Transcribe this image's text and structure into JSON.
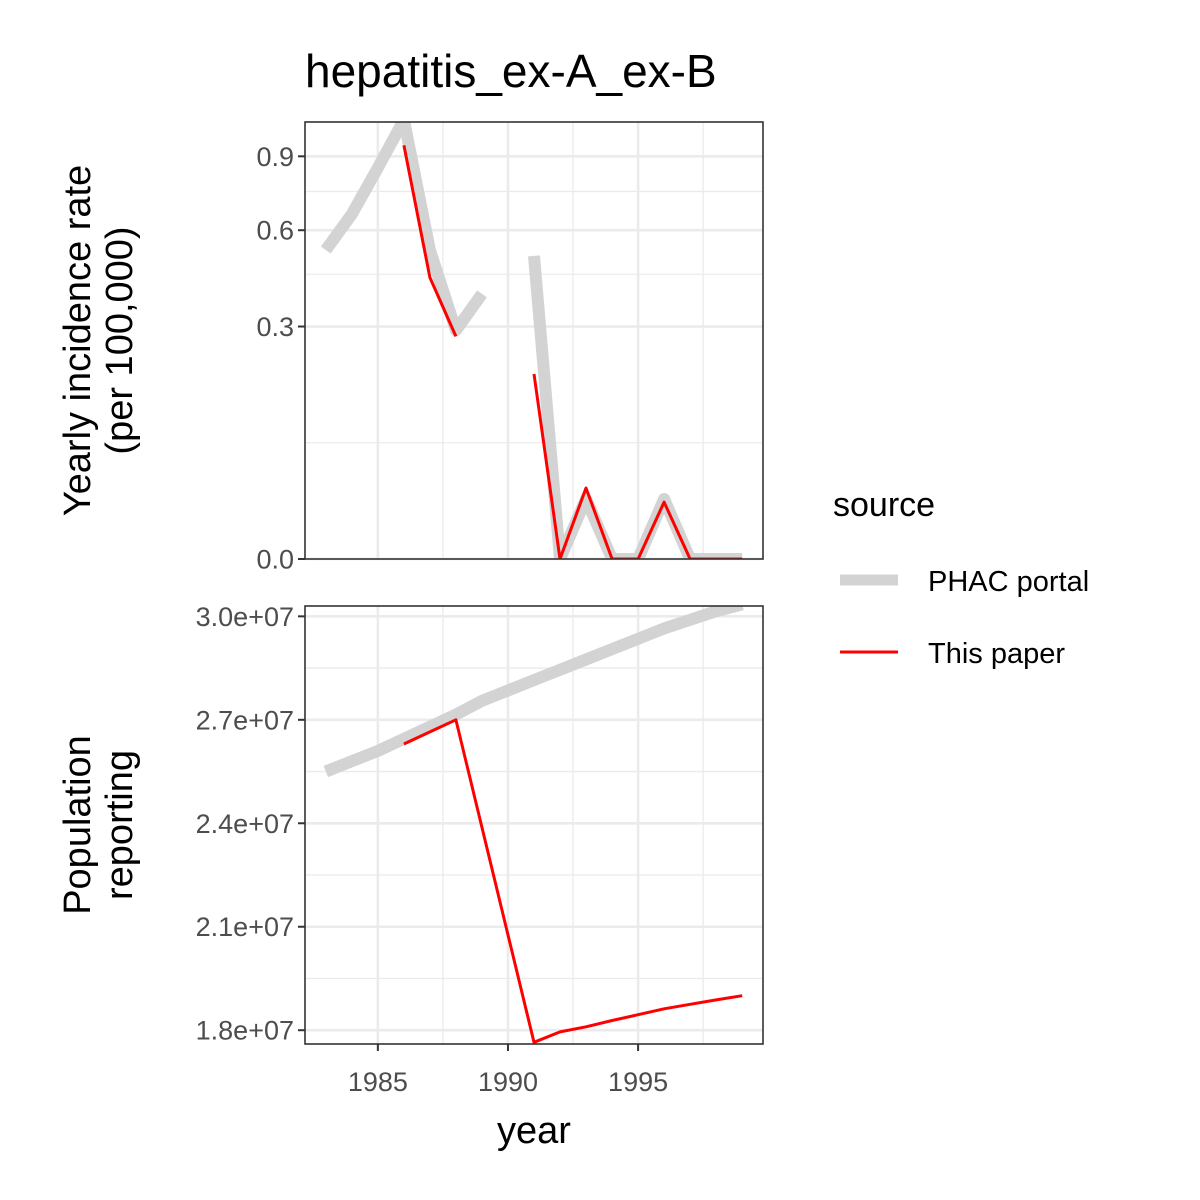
{
  "chart_data": {
    "type": "line",
    "title": "hepatitis_ex-A_ex-B",
    "xlabel": "year",
    "xlim": [
      1982.2,
      1999.8
    ],
    "x_ticks": [
      1985,
      1990,
      1995
    ],
    "x_tick_labels": [
      "1985",
      "1990",
      "1995"
    ],
    "x_minor_ticks": [
      1987.5,
      1992.5,
      1997.5
    ],
    "grid": true,
    "legend": {
      "title": "source",
      "position": "right",
      "entries": [
        {
          "label": "PHAC portal",
          "color": "#d3d3d3",
          "style": "thick"
        },
        {
          "label": "This paper",
          "color": "#ff0000",
          "style": "thin"
        }
      ]
    },
    "panels": [
      {
        "ylabel": [
          "Yearly incidence rate",
          "(per 100,000)"
        ],
        "y_scale": "sqrt",
        "ylim": [
          0,
          1.06
        ],
        "y_ticks": [
          0.0,
          0.3,
          0.6,
          0.9
        ],
        "y_tick_labels": [
          "0.0",
          "0.3",
          "0.6",
          "0.9"
        ],
        "y_minor_ticks": [
          0.075,
          0.45,
          0.75
        ],
        "series": [
          {
            "name": "PHAC portal",
            "segments": [
              {
                "x": [
                  1983,
                  1984,
                  1985,
                  1986,
                  1987,
                  1988,
                  1989
                ],
                "y": [
                  0.53,
                  0.66,
                  0.85,
                  1.07,
                  0.53,
                  0.29,
                  0.39
                ]
              },
              {
                "x": [
                  1991,
                  1992,
                  1993,
                  1994,
                  1995,
                  1996,
                  1997,
                  1998,
                  1999
                ],
                "y": [
                  0.51,
                  0.0,
                  0.02,
                  0.0,
                  0.0,
                  0.02,
                  0.0,
                  0.0,
                  0.0
                ]
              }
            ]
          },
          {
            "name": "This paper",
            "segments": [
              {
                "x": [
                  1986,
                  1987,
                  1988
                ],
                "y": [
                  0.95,
                  0.44,
                  0.275
                ]
              },
              {
                "x": [
                  1991,
                  1992,
                  1993,
                  1994,
                  1995,
                  1996,
                  1997,
                  1998,
                  1999
                ],
                "y": [
                  0.19,
                  0.0,
                  0.028,
                  0.0,
                  0.0,
                  0.018,
                  0.0,
                  0.0,
                  0.0
                ]
              }
            ]
          }
        ]
      },
      {
        "ylabel": [
          "Population",
          "reporting"
        ],
        "y_scale": "linear",
        "ylim": [
          17600000,
          30300000
        ],
        "y_ticks": [
          18000000,
          21000000,
          24000000,
          27000000,
          30000000
        ],
        "y_tick_labels": [
          "1.8e+07",
          "2.1e+07",
          "2.4e+07",
          "2.7e+07",
          "3.0e+07"
        ],
        "y_minor_ticks": [
          19500000,
          22500000,
          25500000,
          28500000
        ],
        "series": [
          {
            "name": "PHAC portal",
            "segments": [
              {
                "x": [
                  1983,
                  1984,
                  1985,
                  1986,
                  1987,
                  1988,
                  1989,
                  1990,
                  1991,
                  1992,
                  1993,
                  1994,
                  1995,
                  1996,
                  1997,
                  1998,
                  1999
                ],
                "y": [
                  25500000,
                  25800000,
                  26100000,
                  26450000,
                  26800000,
                  27150000,
                  27550000,
                  27850000,
                  28150000,
                  28450000,
                  28750000,
                  29050000,
                  29350000,
                  29650000,
                  29900000,
                  30150000,
                  30350000
                ]
              }
            ]
          },
          {
            "name": "This paper",
            "segments": [
              {
                "x": [
                  1986,
                  1987,
                  1988,
                  1991,
                  1992,
                  1993,
                  1994,
                  1995,
                  1996,
                  1997,
                  1998,
                  1999
                ],
                "y": [
                  26300000,
                  26650000,
                  27000000,
                  17650000,
                  17950000,
                  18100000,
                  18280000,
                  18450000,
                  18620000,
                  18750000,
                  18880000,
                  19000000
                ]
              }
            ]
          }
        ]
      }
    ]
  }
}
